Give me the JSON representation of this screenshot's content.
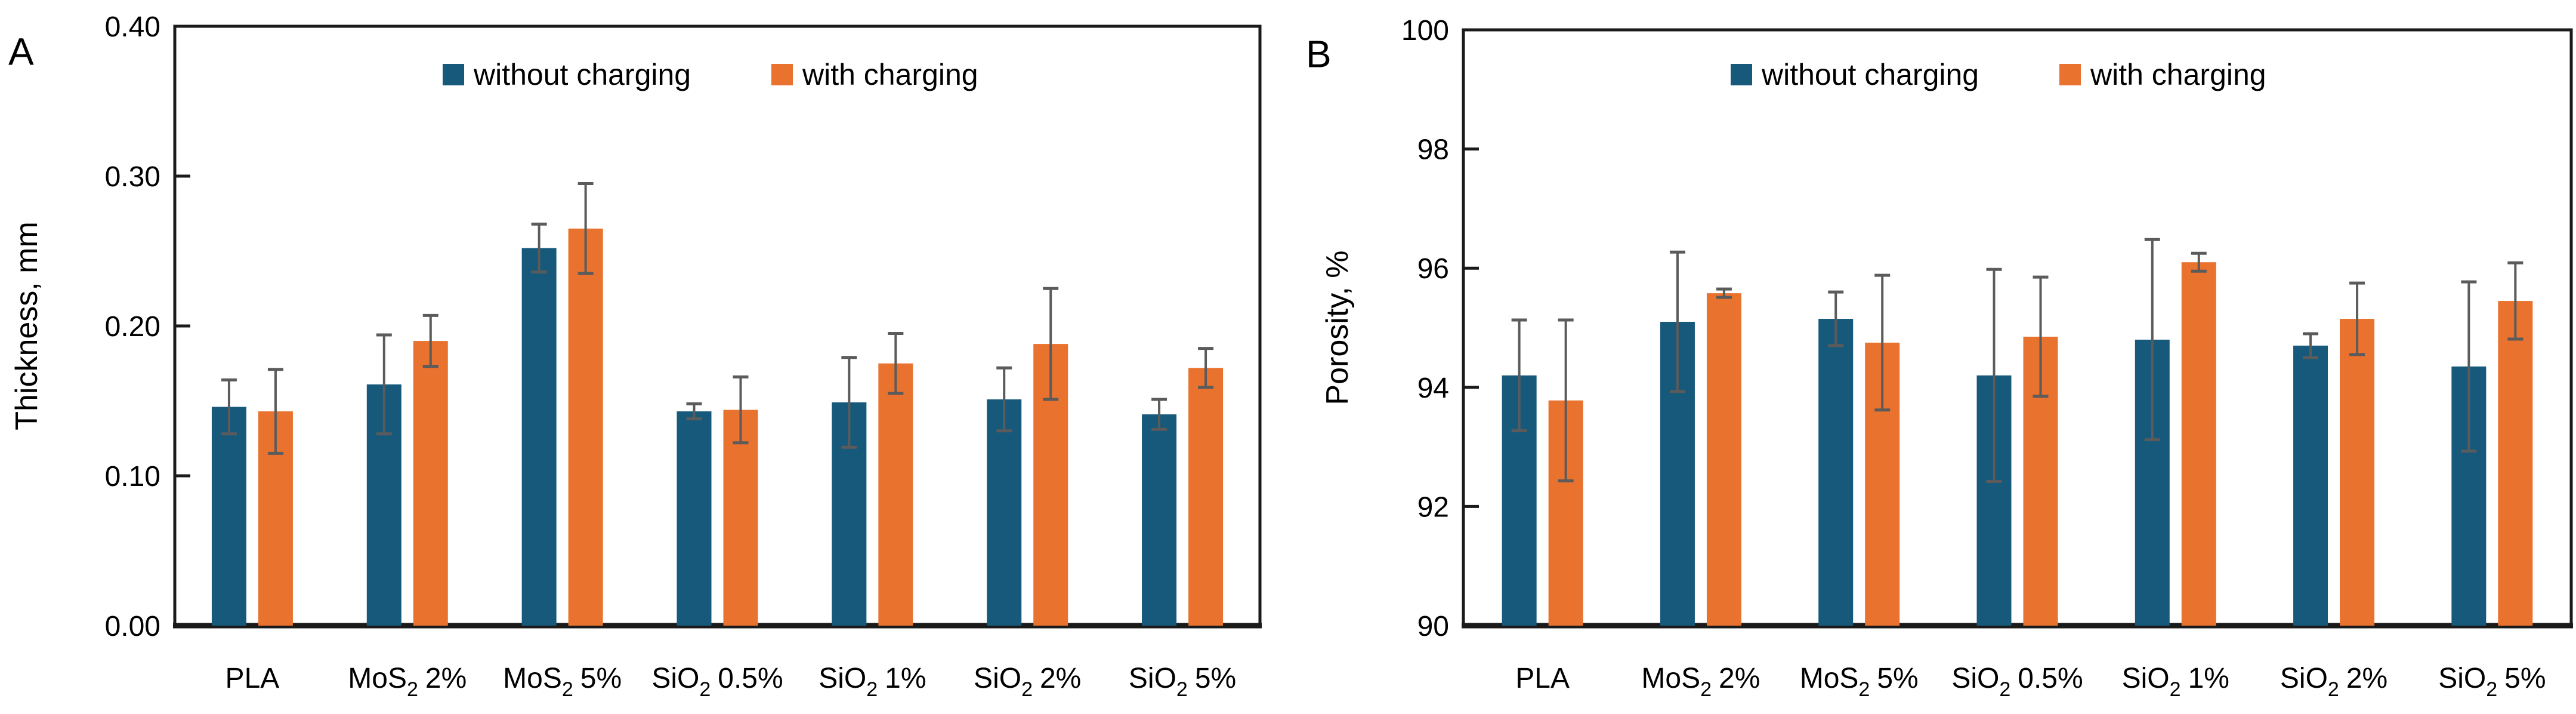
{
  "colors": {
    "without_charging": "#16597B",
    "with_charging": "#E9722F",
    "error_bar": "#5B5B5B",
    "axis": "#1A1A1A",
    "text": "#000000",
    "background": "#FFFFFF"
  },
  "legend": {
    "items": [
      {
        "label": "without charging",
        "color": "#16597B"
      },
      {
        "label": "with charging",
        "color": "#E9722F"
      }
    ]
  },
  "chart_data": [
    {
      "id": "A",
      "panel_label": "A",
      "type": "bar",
      "title": "",
      "xlabel": "",
      "ylabel": "Thickness, mm",
      "ylim": [
        0,
        0.4
      ],
      "grid": false,
      "legend_position": "top-center",
      "yticks": [
        {
          "value": 0.0,
          "label": "0.00"
        },
        {
          "value": 0.1,
          "label": "0.10"
        },
        {
          "value": 0.2,
          "label": "0.20"
        },
        {
          "value": 0.3,
          "label": "0.30"
        },
        {
          "value": 0.4,
          "label": "0.40"
        }
      ],
      "categories": [
        {
          "text": "PLA",
          "base": "PLA",
          "sub": "",
          "suffix": ""
        },
        {
          "text": "MoS2 2%",
          "base": "MoS",
          "sub": "2",
          "suffix": "2%"
        },
        {
          "text": "MoS2 5%",
          "base": "MoS",
          "sub": "2",
          "suffix": "5%"
        },
        {
          "text": "SiO2 0.5%",
          "base": "SiO",
          "sub": "2",
          "suffix": "0.5%"
        },
        {
          "text": "SiO2 1%",
          "base": "SiO",
          "sub": "2",
          "suffix": "1%"
        },
        {
          "text": "SiO2 2%",
          "base": "SiO",
          "sub": "2",
          "suffix": "2%"
        },
        {
          "text": "SiO2 5%",
          "base": "SiO",
          "sub": "2",
          "suffix": "5%"
        }
      ],
      "series": [
        {
          "name": "without charging",
          "values": [
            0.146,
            0.161,
            0.252,
            0.143,
            0.149,
            0.151,
            0.141
          ],
          "errors": [
            0.018,
            0.033,
            0.016,
            0.005,
            0.03,
            0.021,
            0.01
          ]
        },
        {
          "name": "with charging",
          "values": [
            0.143,
            0.19,
            0.265,
            0.144,
            0.175,
            0.188,
            0.172
          ],
          "errors": [
            0.028,
            0.017,
            0.03,
            0.022,
            0.02,
            0.037,
            0.013
          ]
        }
      ]
    },
    {
      "id": "B",
      "panel_label": "B",
      "type": "bar",
      "title": "",
      "xlabel": "",
      "ylabel": "Porosity, %",
      "ylim": [
        90,
        100
      ],
      "grid": false,
      "legend_position": "top-center",
      "yticks": [
        {
          "value": 90,
          "label": "90"
        },
        {
          "value": 92,
          "label": "92"
        },
        {
          "value": 94,
          "label": "94"
        },
        {
          "value": 96,
          "label": "96"
        },
        {
          "value": 98,
          "label": "98"
        },
        {
          "value": 100,
          "label": "100"
        }
      ],
      "categories": [
        {
          "text": "PLA",
          "base": "PLA",
          "sub": "",
          "suffix": ""
        },
        {
          "text": "MoS2 2%",
          "base": "MoS",
          "sub": "2",
          "suffix": "2%"
        },
        {
          "text": "MoS2 5%",
          "base": "MoS",
          "sub": "2",
          "suffix": "5%"
        },
        {
          "text": "SiO2 0.5%",
          "base": "SiO",
          "sub": "2",
          "suffix": "0.5%"
        },
        {
          "text": "SiO2 1%",
          "base": "SiO",
          "sub": "2",
          "suffix": "1%"
        },
        {
          "text": "SiO2 2%",
          "base": "SiO",
          "sub": "2",
          "suffix": "2%"
        },
        {
          "text": "SiO2 5%",
          "base": "SiO",
          "sub": "2",
          "suffix": "5%"
        }
      ],
      "series": [
        {
          "name": "without charging",
          "values": [
            94.2,
            95.1,
            95.15,
            94.2,
            94.8,
            94.7,
            94.35
          ],
          "errors": [
            0.93,
            1.17,
            0.45,
            1.78,
            1.68,
            0.2,
            1.42
          ]
        },
        {
          "name": "with charging",
          "values": [
            93.78,
            95.58,
            94.75,
            94.85,
            96.1,
            95.15,
            95.45
          ],
          "errors": [
            1.35,
            0.07,
            1.13,
            1.0,
            0.15,
            0.6,
            0.64
          ]
        }
      ]
    }
  ]
}
